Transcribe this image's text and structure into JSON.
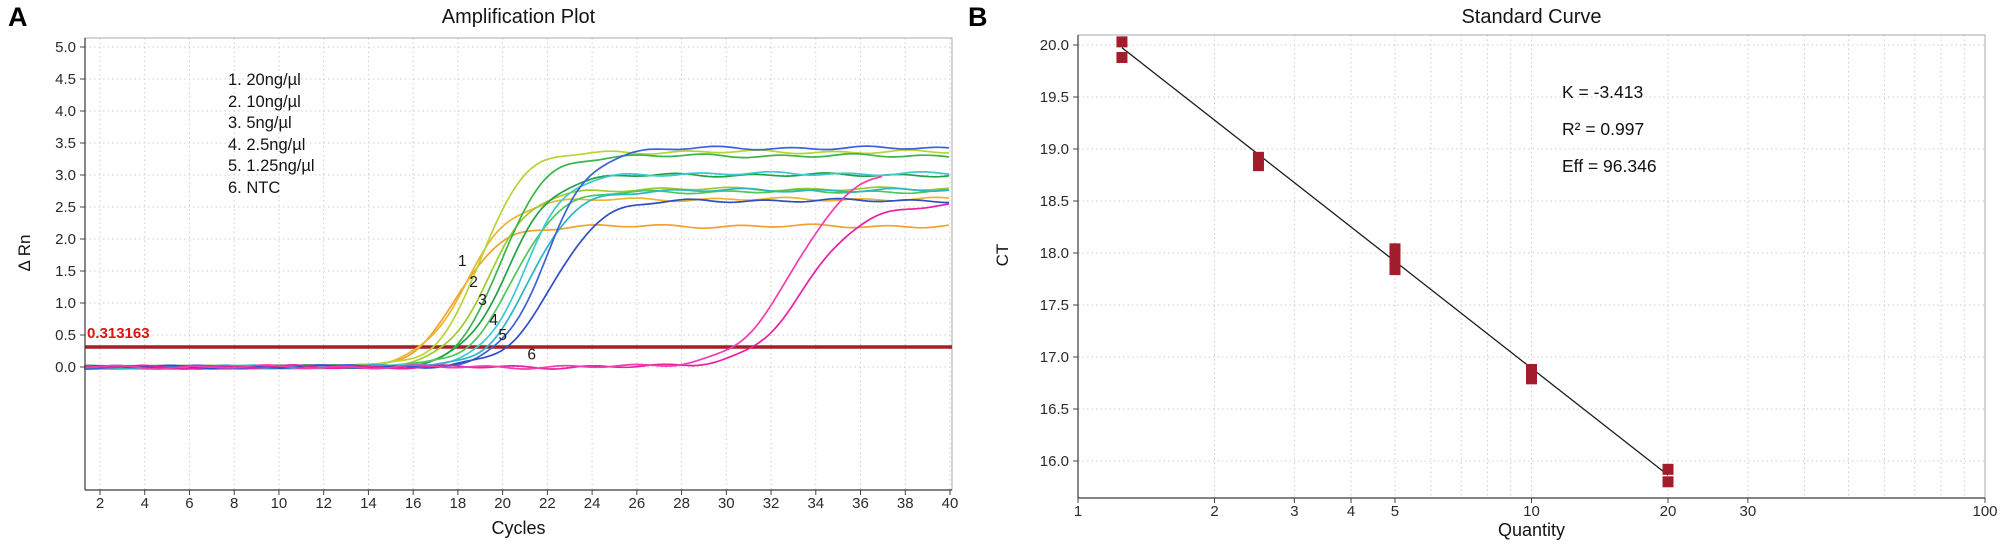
{
  "panel_a": {
    "label": "A"
  },
  "panel_b": {
    "label": "B"
  },
  "chart_data": [
    {
      "id": "amplification_plot",
      "type": "line",
      "title": "Amplification Plot",
      "xlabel": "Cycles",
      "ylabel": "Δ Rn",
      "xlim": [
        1.33,
        40.2
      ],
      "ylim": [
        -1.9,
        5.15
      ],
      "grid": true,
      "x_ticks": [
        2,
        4,
        6,
        8,
        10,
        12,
        14,
        16,
        18,
        20,
        22,
        24,
        26,
        28,
        30,
        32,
        34,
        36,
        38,
        40
      ],
      "y_ticks": [
        0,
        0.5,
        1,
        1.5,
        2,
        2.5,
        3,
        3.5,
        4,
        4.5,
        5
      ],
      "threshold": {
        "value": 0.313163,
        "label": "0.313163",
        "color": "#a81e24",
        "label_color": "#e11212"
      },
      "legend": [
        "1. 20ng/µl",
        "2. 10ng/µl",
        "3. 5ng/µl",
        "4. 2.5ng/µl",
        "5. 1.25ng/µl",
        "6. NTC"
      ],
      "curve_labels": [
        {
          "text": "1",
          "x": 18.2,
          "y": 1.58
        },
        {
          "text": "2",
          "x": 18.7,
          "y": 1.25
        },
        {
          "text": "3",
          "x": 19.1,
          "y": 0.97
        },
        {
          "text": "4",
          "x": 19.6,
          "y": 0.66
        },
        {
          "text": "5",
          "x": 20.0,
          "y": 0.42
        },
        {
          "text": "6",
          "x": 21.3,
          "y": 0.12
        }
      ],
      "series": [
        {
          "sample": "20ng/µl",
          "color": "#f0a12f",
          "mid": 18.0,
          "k": 0.95,
          "plateau": 2.2
        },
        {
          "sample": "20ng/µl",
          "color": "#edb52e",
          "mid": 18.35,
          "k": 1.0,
          "plateau": 2.62
        },
        {
          "sample": "10ng/µl",
          "color": "#b8d434",
          "mid": 19.0,
          "k": 0.95,
          "plateau": 3.36
        },
        {
          "sample": "10ng/µl",
          "color": "#9ecb31",
          "mid": 19.35,
          "k": 1.0,
          "plateau": 2.78
        },
        {
          "sample": "5ng/µl",
          "color": "#39b54a",
          "mid": 19.95,
          "k": 0.95,
          "plateau": 3.3
        },
        {
          "sample": "5ng/µl",
          "color": "#23a148",
          "mid": 20.2,
          "k": 1.0,
          "plateau": 3.0
        },
        {
          "sample": "5ng/µl",
          "color": "#4fc75c",
          "mid": 20.45,
          "k": 1.0,
          "plateau": 2.74
        },
        {
          "sample": "2.5ng/µl",
          "color": "#3ec9d1",
          "mid": 20.95,
          "k": 0.95,
          "plateau": 3.02
        },
        {
          "sample": "2.5ng/µl",
          "color": "#2ab6c4",
          "mid": 21.25,
          "k": 1.0,
          "plateau": 2.76
        },
        {
          "sample": "1.25ng/µl",
          "color": "#3b62d8",
          "mid": 21.95,
          "k": 1.0,
          "plateau": 3.42
        },
        {
          "sample": "1.25ng/µl",
          "color": "#2e4fc4",
          "mid": 22.25,
          "k": 1.05,
          "plateau": 2.6
        },
        {
          "sample": "NTC",
          "color": "#ea1fa3",
          "mid": 33.6,
          "k": 1.25,
          "plateau": 2.55
        },
        {
          "sample": "NTC",
          "color": "#f23cb0",
          "mid": 33.1,
          "k": 1.3,
          "plateau": 3.15,
          "x_end": 37
        }
      ]
    },
    {
      "id": "standard_curve",
      "type": "scatter",
      "title": "Standard Curve",
      "xlabel": "Quantity",
      "ylabel": "CT",
      "x_scale": "log",
      "xlim": [
        1,
        100
      ],
      "ylim": [
        15.63,
        20.1
      ],
      "grid": true,
      "x_tick_labels": [
        1,
        2,
        3,
        4,
        5,
        10,
        20,
        30,
        100
      ],
      "x_grid": [
        1,
        2,
        3,
        4,
        5,
        6,
        7,
        8,
        9,
        10,
        20,
        30,
        40,
        50,
        60,
        70,
        80,
        90,
        100
      ],
      "y_ticks": [
        16,
        16.5,
        17,
        17.5,
        18,
        18.5,
        19,
        19.5,
        20
      ],
      "marker_color": "#a21d2b",
      "points": [
        {
          "q": 1.25,
          "ct": 20.03
        },
        {
          "q": 1.25,
          "ct": 19.88
        },
        {
          "q": 2.5,
          "ct": 18.92
        },
        {
          "q": 2.5,
          "ct": 18.84
        },
        {
          "q": 5,
          "ct": 18.04
        },
        {
          "q": 5,
          "ct": 17.94
        },
        {
          "q": 5,
          "ct": 17.84
        },
        {
          "q": 10,
          "ct": 16.88
        },
        {
          "q": 10,
          "ct": 16.79
        },
        {
          "q": 20,
          "ct": 15.92
        },
        {
          "q": 20,
          "ct": 15.8
        }
      ],
      "fit": {
        "slope": -3.413,
        "intercept": 20.305,
        "x_range": [
          1.25,
          20
        ],
        "color": "#1a1a1a"
      },
      "annotations": [
        "K = -3.413",
        "R² = 0.997",
        "Eff = 96.346"
      ]
    }
  ]
}
